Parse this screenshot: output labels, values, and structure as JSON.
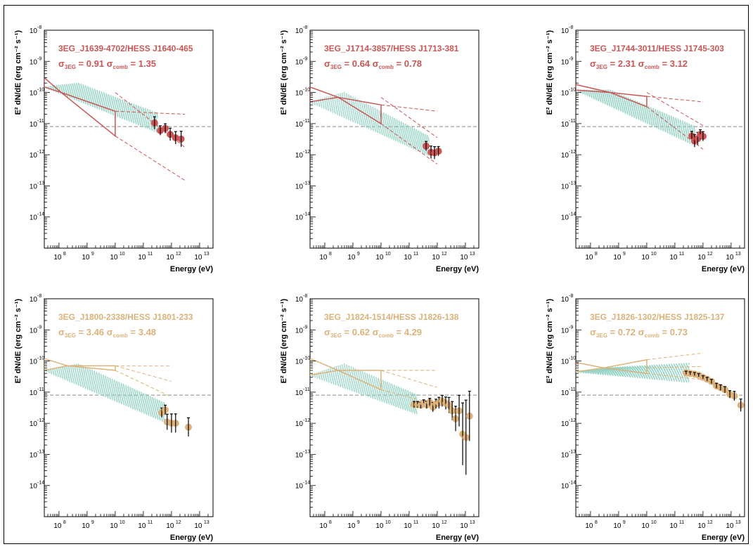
{
  "chart_data": [
    {
      "type": "scatter",
      "title": "3EG_J1639-4702/HESS J1640-465",
      "sigma_3eg": "0.91",
      "sigma_comb": "1.35",
      "color": "#cc5555",
      "xlabel": "Energy (eV)",
      "ylabel": "E² dN/dE (erg cm⁻² s⁻¹)",
      "x_scale": "log",
      "y_scale": "log",
      "xlim": [
        30000000.0,
        30000000000000.0
      ],
      "ylim": [
        1e-15,
        1e-08
      ],
      "hline": 8e-12,
      "egret_bowtie": {
        "e_min": 30000000.0,
        "e_pivot": 120000000.0,
        "e_max": 10000000000.0,
        "f_pivot": 1e-10,
        "f_lo_min": 1.5e-10,
        "f_hi_min": 3e-10,
        "f_lo_max": 4e-12,
        "f_hi_max": 2.5e-11
      },
      "extrapolation": {
        "e_end": 3000000000000.0,
        "f_lo_end": 1.5e-13,
        "f_hi_end": 2e-11
      },
      "hess_points": [
        {
          "e": 250000000000.0,
          "f": 1.05e-11,
          "err": 0.2
        },
        {
          "e": 400000000000.0,
          "f": 6e-12,
          "err": 0.15
        },
        {
          "e": 600000000000.0,
          "f": 7e-12,
          "err": 0.15
        },
        {
          "e": 900000000000.0,
          "f": 4.5e-12,
          "err": 0.2
        },
        {
          "e": 1400000000000.0,
          "f": 3.5e-12,
          "err": 0.2
        },
        {
          "e": 2200000000000.0,
          "f": 3.2e-12,
          "err": 0.25
        }
      ]
    },
    {
      "type": "scatter",
      "title": "3EG_J1714-3857/HESS J1713-381",
      "sigma_3eg": "0.64",
      "sigma_comb": "0.78",
      "color": "#cc5555",
      "xlabel": "Energy (eV)",
      "ylabel": "E² dN/dE (erg cm⁻² s⁻¹)",
      "x_scale": "log",
      "y_scale": "log",
      "xlim": [
        30000000.0,
        30000000000000.0
      ],
      "ylim": [
        1e-15,
        1e-08
      ],
      "hline": 8e-12,
      "egret_bowtie": {
        "e_min": 30000000.0,
        "e_pivot": 300000000.0,
        "e_max": 10000000000.0,
        "f_pivot": 7e-11,
        "f_lo_min": 5e-11,
        "f_hi_min": 1.5e-10,
        "f_lo_max": 1e-11,
        "f_hi_max": 4e-11
      },
      "extrapolation": {
        "e_end": 1000000000000.0,
        "f_lo_end": 5e-13,
        "f_hi_end": 2.5e-11
      },
      "hess_points": [
        {
          "e": 400000000000.0,
          "f": 1.9e-12,
          "err": 0.15
        },
        {
          "e": 600000000000.0,
          "f": 1.2e-12,
          "err": 0.2
        },
        {
          "e": 800000000000.0,
          "f": 1.15e-12,
          "err": 0.2
        },
        {
          "e": 1100000000000.0,
          "f": 1.3e-12,
          "err": 0.15
        }
      ]
    },
    {
      "type": "scatter",
      "title": "3EG_J1744-3011/HESS J1745-303",
      "sigma_3eg": "2.31",
      "sigma_comb": "3.12",
      "color": "#cc5555",
      "xlabel": "Energy (eV)",
      "ylabel": "E² dN/dE (erg cm⁻² s⁻¹)",
      "x_scale": "log",
      "y_scale": "log",
      "xlim": [
        30000000.0,
        30000000000000.0
      ],
      "ylim": [
        1e-15,
        1e-08
      ],
      "hline": 8e-12,
      "egret_bowtie": {
        "e_min": 30000000.0,
        "e_pivot": 500000000.0,
        "e_max": 10000000000.0,
        "f_pivot": 1e-10,
        "f_lo_min": 1.2e-10,
        "f_hi_min": 1.8e-10,
        "f_lo_max": 3.5e-11,
        "f_hi_max": 7.5e-11
      },
      "extrapolation": {
        "e_end": 1000000000000.0,
        "f_lo_end": 1.5e-12,
        "f_hi_end": 5e-11
      },
      "hess_points": [
        {
          "e": 400000000000.0,
          "f": 4e-12,
          "err": 0.15
        },
        {
          "e": 500000000000.0,
          "f": 2.8e-12,
          "err": 0.2
        },
        {
          "e": 650000000000.0,
          "f": 3.3e-12,
          "err": 0.2
        },
        {
          "e": 800000000000.0,
          "f": 4.5e-12,
          "err": 0.15
        },
        {
          "e": 1000000000000.0,
          "f": 3.9e-12,
          "err": 0.15
        }
      ]
    },
    {
      "type": "scatter",
      "title": "3EG_J1800-2338/HESS J1801-233",
      "sigma_3eg": "3.46",
      "sigma_comb": "3.48",
      "color": "#dcb27a",
      "xlabel": "Energy (eV)",
      "ylabel": "E² dN/dE (erg cm⁻² s⁻¹)",
      "x_scale": "log",
      "y_scale": "log",
      "xlim": [
        30000000.0,
        30000000000000.0
      ],
      "ylim": [
        1e-15,
        1e-08
      ],
      "hline": 8e-12,
      "egret_bowtie": {
        "e_min": 30000000.0,
        "e_pivot": 200000000.0,
        "e_max": 10000000000.0,
        "f_pivot": 7e-11,
        "f_lo_min": 5e-11,
        "f_hi_min": 1.2e-10,
        "f_lo_max": 5e-11,
        "f_hi_max": 7e-11
      },
      "extrapolation": {
        "e_end": 1000000000000.0,
        "f_lo_end": 7e-12,
        "f_hi_end": 7e-11
      },
      "hess_points": [
        {
          "e": 450000000000.0,
          "f": 2.2e-12,
          "err": 0.15
        },
        {
          "e": 600000000000.0,
          "f": 2.7e-12,
          "err": 0.15
        },
        {
          "e": 700000000000.0,
          "f": 1.1e-12,
          "err": 0.25
        },
        {
          "e": 1000000000000.0,
          "f": 1e-12,
          "err": 0.3
        },
        {
          "e": 1400000000000.0,
          "f": 1e-12,
          "err": 0.3
        },
        {
          "e": 4000000000000.0,
          "f": 7.5e-13,
          "err": 0.3
        }
      ]
    },
    {
      "type": "scatter",
      "title": "3EG_J1824-1514/HESS J1826-138",
      "sigma_3eg": "0.62",
      "sigma_comb": "4.29",
      "color": "#dcb27a",
      "xlabel": "Energy (eV)",
      "ylabel": "E² dN/dE (erg cm⁻² s⁻¹)",
      "x_scale": "log",
      "y_scale": "log",
      "xlim": [
        30000000.0,
        30000000000000.0
      ],
      "ylim": [
        1e-15,
        1e-08
      ],
      "hline": 8e-12,
      "egret_bowtie": {
        "e_min": 30000000.0,
        "e_pivot": 300000000.0,
        "e_max": 10000000000.0,
        "f_pivot": 5e-11,
        "f_lo_min": 3.5e-11,
        "f_hi_min": 1.2e-10,
        "f_lo_max": 1.2e-11,
        "f_hi_max": 5e-11
      },
      "extrapolation": {
        "e_end": 1000000000000.0,
        "f_lo_end": 4e-12,
        "f_hi_end": 5e-11
      },
      "hess_points": [
        {
          "e": 150000000000.0,
          "f": 4e-12,
          "err": 0.1
        },
        {
          "e": 200000000000.0,
          "f": 4e-12,
          "err": 0.1
        },
        {
          "e": 260000000000.0,
          "f": 3.8e-12,
          "err": 0.1
        },
        {
          "e": 330000000000.0,
          "f": 4.5e-12,
          "err": 0.1
        },
        {
          "e": 420000000000.0,
          "f": 3.9e-12,
          "err": 0.12
        },
        {
          "e": 540000000000.0,
          "f": 4.8e-12,
          "err": 0.12
        },
        {
          "e": 700000000000.0,
          "f": 3.3e-12,
          "err": 0.15
        },
        {
          "e": 900000000000.0,
          "f": 4.2e-12,
          "err": 0.15
        },
        {
          "e": 1150000000000.0,
          "f": 4.5e-12,
          "err": 0.18
        },
        {
          "e": 1500000000000.0,
          "f": 5.2e-12,
          "err": 0.18
        },
        {
          "e": 2000000000000.0,
          "f": 4.4e-12,
          "err": 0.2
        },
        {
          "e": 2600000000000.0,
          "f": 3.8e-12,
          "err": 0.25
        },
        {
          "e": 3400000000000.0,
          "f": 2.5e-12,
          "err": 0.3
        },
        {
          "e": 4500000000000.0,
          "f": 1.4e-12,
          "err": 0.4
        },
        {
          "e": 6000000000000.0,
          "f": 2.5e-12,
          "err": 0.5
        },
        {
          "e": 8000000000000.0,
          "f": 4.5e-13,
          "err": 1.0
        },
        {
          "e": 10500000000000.0,
          "f": 3.5e-13,
          "err": 1.2
        },
        {
          "e": 14000000000000.0,
          "f": 1.7e-12,
          "err": 0.8
        }
      ]
    },
    {
      "type": "scatter",
      "title": "3EG_J1826-1302/HESS J1825-137",
      "sigma_3eg": "0.72",
      "sigma_comb": "0.73",
      "color": "#dcb27a",
      "xlabel": "Energy (eV)",
      "ylabel": "E² dN/dE (erg cm⁻² s⁻¹)",
      "x_scale": "log",
      "y_scale": "log",
      "xlim": [
        30000000.0,
        30000000000000.0
      ],
      "ylim": [
        1e-15,
        1e-08
      ],
      "hline": 8e-12,
      "egret_bowtie": {
        "e_min": 30000000.0,
        "e_pivot": 300000000.0,
        "e_max": 10000000000.0,
        "f_pivot": 6e-11,
        "f_lo_min": 4.5e-11,
        "f_hi_min": 9e-11,
        "f_lo_max": 4e-11,
        "f_hi_max": 1.1e-10
      },
      "extrapolation": {
        "e_end": 1000000000000.0,
        "f_lo_end": 2.5e-11,
        "f_hi_end": 1.8e-10
      },
      "hess_points": [
        {
          "e": 250000000000.0,
          "f": 4.2e-11,
          "err": 0.05
        },
        {
          "e": 350000000000.0,
          "f": 4e-11,
          "err": 0.05
        },
        {
          "e": 500000000000.0,
          "f": 3.8e-11,
          "err": 0.05
        },
        {
          "e": 700000000000.0,
          "f": 3.5e-11,
          "err": 0.05
        },
        {
          "e": 1000000000000.0,
          "f": 3e-11,
          "err": 0.05
        },
        {
          "e": 1400000000000.0,
          "f": 2.6e-11,
          "err": 0.06
        },
        {
          "e": 2000000000000.0,
          "f": 2.2e-11,
          "err": 0.07
        },
        {
          "e": 3000000000000.0,
          "f": 1.6e-11,
          "err": 0.08
        },
        {
          "e": 4200000000000.0,
          "f": 1.4e-11,
          "err": 0.09
        },
        {
          "e": 6000000000000.0,
          "f": 1.2e-11,
          "err": 0.1
        },
        {
          "e": 9000000000000.0,
          "f": 8.5e-12,
          "err": 0.12
        },
        {
          "e": 13000000000000.0,
          "f": 7.5e-12,
          "err": 0.15
        },
        {
          "e": 22000000000000.0,
          "f": 3.8e-12,
          "err": 0.2
        }
      ]
    }
  ],
  "axis": {
    "ytick_labels": [
      "10",
      "10",
      "10",
      "10",
      "10",
      "10",
      "10"
    ],
    "ytick_exps": [
      "-8",
      "-9",
      "-10",
      "-11",
      "-12",
      "-13",
      "-14"
    ],
    "xtick_labels": [
      "10",
      "10",
      "10",
      "10",
      "10",
      "10"
    ],
    "xtick_exps": [
      "8",
      "9",
      "10",
      "11",
      "12",
      "13"
    ],
    "sigma_label": "σ",
    "sub_3eg": "3EG",
    "sub_comb": "comb",
    "equals": " = "
  },
  "colors": {
    "egret_bowtie_red": "#cc5555",
    "egret_bowtie_tan": "#d8b080",
    "model_band": "#8ccfc0",
    "hline": "#888888"
  }
}
